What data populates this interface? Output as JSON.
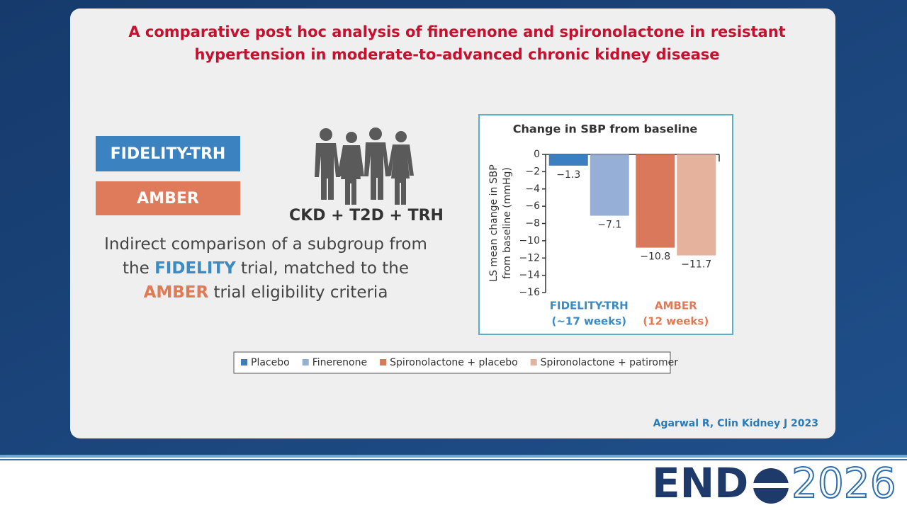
{
  "title": [
    "A comparative post hoc analysis of finerenone and spironolactone in resistant",
    "hypertension in moderate-to-advanced chronic kidney disease"
  ],
  "badges": [
    "FIDELITY-TRH",
    "AMBER"
  ],
  "population": "CKD + T2D + TRH",
  "description": [
    "Indirect comparison of a subgroup from the ",
    "FIDELITY",
    " trial, matched to the ",
    "AMBER",
    " trial eligibility criteria"
  ],
  "citation": "Agarwal R, Clin Kidney J 2023",
  "logo": {
    "left": "END",
    "right": "2026"
  },
  "chart_data": {
    "type": "bar",
    "title": "Change in SBP from baseline",
    "y_label": [
      "LS mean change in SBP",
      "from baseline (mmHg)"
    ],
    "categories": [
      [
        "FIDELITY-TRH",
        "(~17 weeks)"
      ],
      [
        "AMBER",
        "(12 weeks)"
      ]
    ],
    "category_colors": [
      "#3a8ac4",
      "#e07a55"
    ],
    "series": [
      {
        "name": "Placebo",
        "color": "#3b7fc0",
        "values": [
          -1.3,
          null
        ],
        "value_labels": [
          "−1.3",
          null
        ]
      },
      {
        "name": "Finerenone",
        "color": "#95afd6",
        "values": [
          -7.1,
          null
        ],
        "value_labels": [
          "−7.1",
          null
        ]
      },
      {
        "name": "Spironolactone + placebo",
        "color": "#d9785a",
        "values": [
          null,
          -10.8
        ],
        "value_labels": [
          null,
          "−10.8"
        ]
      },
      {
        "name": "Spironolactone + patiromer",
        "color": "#e5b39d",
        "values": [
          null,
          -11.7
        ],
        "value_labels": [
          null,
          "−11.7"
        ]
      }
    ],
    "ylim": [
      -16,
      0
    ],
    "yticks": [
      0,
      {
        "value": -2,
        "label": "−2"
      },
      {
        "value": -4,
        "label": "−4"
      },
      {
        "value": -6,
        "label": "−6"
      },
      {
        "value": -8,
        "label": "−8"
      },
      {
        "value": -10,
        "label": "−10"
      },
      {
        "value": -12,
        "label": "−12"
      },
      {
        "value": -14,
        "label": "−14"
      },
      {
        "value": -16,
        "label": "−16"
      }
    ],
    "legend": "bottom"
  }
}
